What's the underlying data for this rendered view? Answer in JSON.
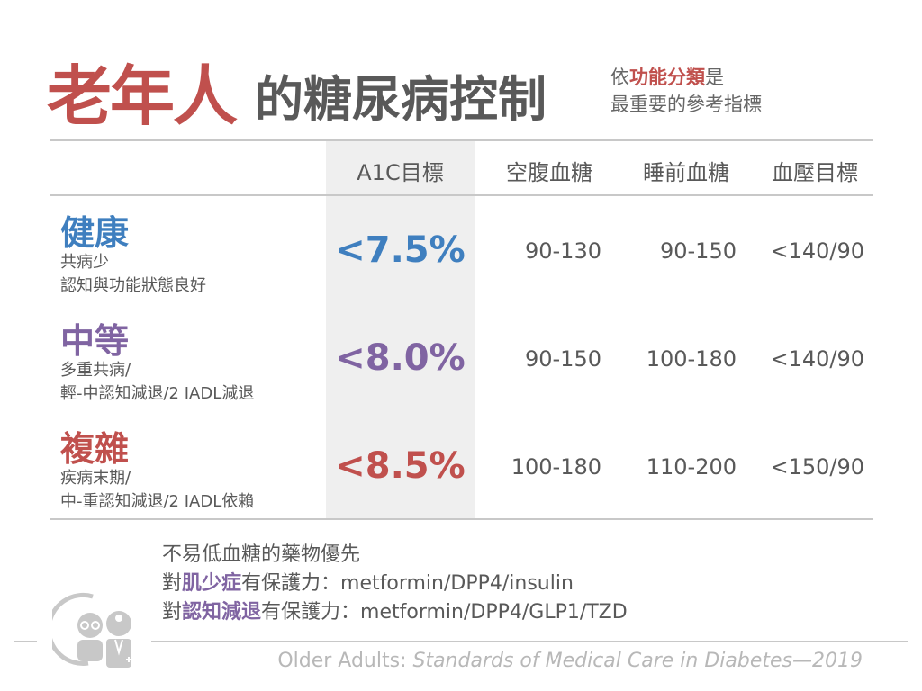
{
  "title": {
    "main": "老年人",
    "rest": "的糖尿病控制"
  },
  "subtitle": {
    "line1_pre": "依",
    "line1_hl": "功能分類",
    "line1_post": "是",
    "line2": "最重要的參考指標"
  },
  "table": {
    "headers": [
      "A1C目標",
      "空腹血糖",
      "睡前血糖",
      "血壓目標"
    ],
    "rows": [
      {
        "category": "健康",
        "desc1": "共病少",
        "desc2": "認知與功能狀態良好",
        "a1c": "<7.5%",
        "fasting": "90-130",
        "bedtime": "90-150",
        "bp": "<140/90",
        "color": "#3f7fbf"
      },
      {
        "category": "中等",
        "desc1": "多重共病/",
        "desc2": "輕-中認知減退/2 IADL減退",
        "a1c": "<8.0%",
        "fasting": "90-150",
        "bedtime": "100-180",
        "bp": "<140/90",
        "color": "#8064a2"
      },
      {
        "category": "複雜",
        "desc1": "疾病末期/",
        "desc2": "中-重認知減退/2 IADL依賴",
        "a1c": "<8.5%",
        "fasting": "100-180",
        "bedtime": "110-200",
        "bp": "<150/90",
        "color": "#c0504d"
      }
    ]
  },
  "notes": {
    "line1": "不易低血糖的藥物優先",
    "line2_pre": "對",
    "line2_hl": "肌少症",
    "line2_post": "有保護力：metformin/DPP4/insulin",
    "line3_pre": "對",
    "line3_hl": "認知減退",
    "line3_post": "有保護力：metformin/DPP4/GLP1/TZD"
  },
  "citation": {
    "plain": "Older Adults: ",
    "italic": "Standards of Medical Care in Diabetes—2019"
  },
  "icon": "elderly-patient-doctor-icon"
}
